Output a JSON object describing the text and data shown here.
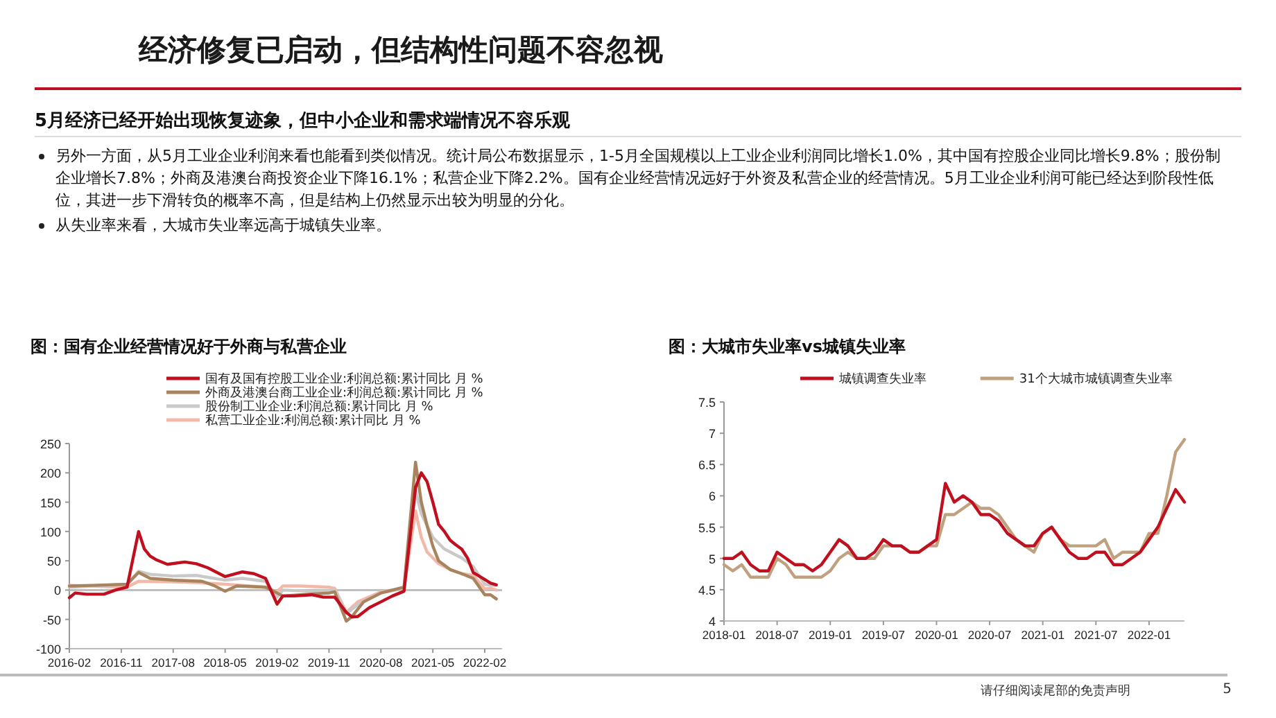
{
  "chart_data": [
    {
      "type": "other",
      "title": "经济修复已启动，但结构性问题不容忽视",
      "subtitle": "5月经济已经开始出现恢复迹象，但中小企业和需求端情况不容乐观",
      "annotations": [
        "另外一方面，从5月工业企业利润来看也能看到类似情况。统计局公布数据显示，1-5月全国规模以上工业企业利润同比增长1.0%，其中国有控股企业同比增长9.8%；股份制企业增长7.8%；外商及港澳台商投资企业下降16.1%；私营企业下降2.2%。国有企业经营情况远好于外资及私营企业的经营情况。5月工业企业利润可能已经达到阶段性低位，其进一步下滑转负的概率不高，但是结构上仍然显示出较为明显的分化。",
        "从失业率来看，大城市失业率远高于城镇失业率。",
        "请仔细阅读尾部的免责声明",
        "5"
      ]
    },
    {
      "type": "line",
      "title": "图：国有企业经营情况好于外商与私营企业",
      "legend": "top",
      "grid": false,
      "ref_lines": [
        {
          "axis": "y",
          "value": 0,
          "color": "#bfbfbf"
        }
      ],
      "xlim": [
        "2016-02",
        "2022-05"
      ],
      "xticks": [
        "2016-02",
        "2016-11",
        "2017-08",
        "2018-05",
        "2019-02",
        "2019-11",
        "2020-08",
        "2021-05",
        "2022-02"
      ],
      "ylim": [
        -100,
        250
      ],
      "yticks": [
        -100,
        -50,
        0,
        50,
        100,
        150,
        200,
        250
      ],
      "series": [
        {
          "name": "国有及国有控股工业企业:利润总额:累计同比 月 %",
          "color": "#c00f1e",
          "x": [
            "2016-02",
            "2016-03",
            "2016-05",
            "2016-08",
            "2016-10",
            "2016-12",
            "2017-02",
            "2017-03",
            "2017-04",
            "2017-05",
            "2017-07",
            "2017-10",
            "2017-12",
            "2018-02",
            "2018-05",
            "2018-08",
            "2018-10",
            "2018-12",
            "2019-02",
            "2019-03",
            "2019-05",
            "2019-08",
            "2019-10",
            "2019-12",
            "2020-02",
            "2020-03",
            "2020-04",
            "2020-06",
            "2020-08",
            "2020-10",
            "2020-12",
            "2021-02",
            "2021-03",
            "2021-04",
            "2021-05",
            "2021-06",
            "2021-07",
            "2021-08",
            "2021-09",
            "2021-10",
            "2021-11",
            "2021-12",
            "2022-02",
            "2022-03",
            "2022-04"
          ],
          "values": [
            -13,
            -5,
            -7,
            -7,
            0,
            5,
            100,
            70,
            58,
            52,
            44,
            48,
            45,
            38,
            23,
            31,
            28,
            20,
            -24,
            -10,
            -10,
            -8,
            -12,
            -12,
            -38,
            -46,
            -45,
            -30,
            -20,
            -10,
            -2,
            175,
            200,
            185,
            150,
            112,
            100,
            85,
            77,
            70,
            55,
            30,
            18,
            12,
            9
          ]
        },
        {
          "name": "外商及港澳台商工业企业:利润总额:累计同比 月 %",
          "color": "#a8845e",
          "x": [
            "2016-02",
            "2016-06",
            "2016-12",
            "2017-02",
            "2017-04",
            "2017-08",
            "2018-01",
            "2018-03",
            "2018-05",
            "2018-07",
            "2018-12",
            "2019-02",
            "2019-03",
            "2019-06",
            "2019-11",
            "2019-12",
            "2020-02",
            "2020-03",
            "2020-05",
            "2020-08",
            "2020-12",
            "2021-02",
            "2021-03",
            "2021-04",
            "2021-05",
            "2021-06",
            "2021-08",
            "2021-10",
            "2021-12",
            "2022-02",
            "2022-03",
            "2022-04"
          ],
          "values": [
            7,
            8,
            10,
            30,
            20,
            17,
            15,
            8,
            -2,
            7,
            5,
            -5,
            -10,
            -8,
            -5,
            -3,
            -53,
            -45,
            -20,
            -5,
            5,
            218,
            150,
            110,
            75,
            50,
            35,
            28,
            20,
            -8,
            -8,
            -15
          ]
        },
        {
          "name": "股份制工业企业:利润总额:累计同比 月 %",
          "color": "#c9c9c9",
          "x": [
            "2016-02",
            "2016-12",
            "2017-02",
            "2017-04",
            "2017-08",
            "2017-12",
            "2018-05",
            "2018-08",
            "2018-12",
            "2019-02",
            "2019-03",
            "2019-08",
            "2019-12",
            "2020-02",
            "2020-04",
            "2020-08",
            "2020-12",
            "2021-02",
            "2021-03",
            "2021-05",
            "2021-07",
            "2021-10",
            "2021-12",
            "2022-02",
            "2022-03",
            "2022-04"
          ],
          "values": [
            5,
            10,
            32,
            27,
            24,
            25,
            17,
            20,
            15,
            -12,
            0,
            -2,
            0,
            -40,
            -25,
            -5,
            3,
            170,
            130,
            90,
            70,
            55,
            40,
            10,
            8,
            8
          ]
        },
        {
          "name": "私营工业企业:利润总额:累计同比 月 %",
          "color": "#f2b9a9",
          "x": [
            "2016-02",
            "2016-12",
            "2017-02",
            "2017-08",
            "2017-12",
            "2018-05",
            "2018-08",
            "2018-12",
            "2019-02",
            "2019-03",
            "2019-06",
            "2019-11",
            "2019-12",
            "2020-02",
            "2020-04",
            "2020-08",
            "2020-12",
            "2021-02",
            "2021-03",
            "2021-04",
            "2021-06",
            "2021-08",
            "2021-10",
            "2021-12",
            "2022-02",
            "2022-03",
            "2022-04"
          ],
          "values": [
            8,
            5,
            15,
            14,
            13,
            10,
            8,
            5,
            -3,
            7,
            7,
            5,
            3,
            -38,
            -20,
            -3,
            3,
            135,
            90,
            65,
            45,
            35,
            28,
            25,
            2,
            3,
            0
          ]
        }
      ]
    },
    {
      "type": "line",
      "title": "图：大城市失业率vs城镇失业率",
      "legend": "top",
      "grid": false,
      "xlim": [
        "2018-01",
        "2022-05"
      ],
      "xticks": [
        "2018-01",
        "2018-07",
        "2019-01",
        "2019-07",
        "2020-01",
        "2020-07",
        "2021-01",
        "2021-07",
        "2022-01"
      ],
      "ylim": [
        4,
        7.5
      ],
      "yticks": [
        4,
        4.5,
        5,
        5.5,
        6,
        6.5,
        7,
        7.5
      ],
      "x": [
        "2018-01",
        "2018-02",
        "2018-03",
        "2018-04",
        "2018-05",
        "2018-06",
        "2018-07",
        "2018-08",
        "2018-09",
        "2018-10",
        "2018-11",
        "2018-12",
        "2019-01",
        "2019-02",
        "2019-03",
        "2019-04",
        "2019-05",
        "2019-06",
        "2019-07",
        "2019-08",
        "2019-09",
        "2019-10",
        "2019-11",
        "2019-12",
        "2020-01",
        "2020-02",
        "2020-03",
        "2020-04",
        "2020-05",
        "2020-06",
        "2020-07",
        "2020-08",
        "2020-09",
        "2020-10",
        "2020-11",
        "2020-12",
        "2021-01",
        "2021-02",
        "2021-03",
        "2021-04",
        "2021-05",
        "2021-06",
        "2021-07",
        "2021-08",
        "2021-09",
        "2021-10",
        "2021-11",
        "2021-12",
        "2022-01",
        "2022-02",
        "2022-03",
        "2022-04",
        "2022-05"
      ],
      "series": [
        {
          "name": "城镇调查失业率",
          "color": "#c00f1e",
          "values": [
            5.0,
            5.0,
            5.1,
            4.9,
            4.8,
            4.8,
            5.1,
            5.0,
            4.9,
            4.9,
            4.8,
            4.9,
            5.1,
            5.3,
            5.2,
            5.0,
            5.0,
            5.1,
            5.3,
            5.2,
            5.2,
            5.1,
            5.1,
            5.2,
            5.3,
            6.2,
            5.9,
            6.0,
            5.9,
            5.7,
            5.7,
            5.6,
            5.4,
            5.3,
            5.2,
            5.2,
            5.4,
            5.5,
            5.3,
            5.1,
            5.0,
            5.0,
            5.1,
            5.1,
            4.9,
            4.9,
            5.0,
            5.1,
            5.3,
            5.5,
            5.8,
            6.1,
            5.9
          ]
        },
        {
          "name": "31个大城市城镇调查失业率",
          "color": "#bfa07f",
          "values": [
            4.9,
            4.8,
            4.9,
            4.7,
            4.7,
            4.7,
            5.0,
            4.9,
            4.7,
            4.7,
            4.7,
            4.7,
            4.8,
            5.0,
            5.1,
            5.0,
            5.0,
            5.0,
            5.2,
            5.2,
            5.2,
            5.1,
            5.1,
            5.2,
            5.2,
            5.7,
            5.7,
            5.8,
            5.9,
            5.8,
            5.8,
            5.7,
            5.5,
            5.3,
            5.2,
            5.1,
            5.4,
            5.5,
            5.3,
            5.2,
            5.2,
            5.2,
            5.2,
            5.3,
            5.0,
            5.1,
            5.1,
            5.1,
            5.4,
            5.4,
            6.0,
            6.7,
            6.9
          ]
        }
      ]
    }
  ]
}
